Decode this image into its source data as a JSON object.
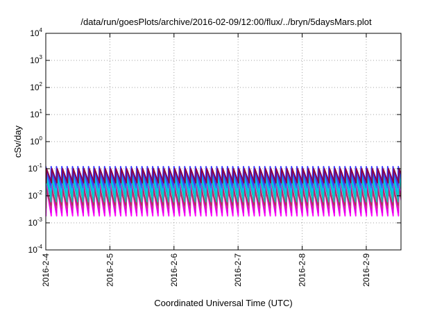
{
  "chart_data": {
    "type": "line",
    "title": "/data/run/goesPlots/archive/2016-02-09/12:00/flux/../bryn/5daysMars.plot",
    "xlabel": "Coordinated Universal Time (UTC)",
    "ylabel": "cSv/day",
    "y_scale": "log",
    "ylim": [
      0.0001,
      10000
    ],
    "xlim": [
      "2016-02-04T00:00",
      "2016-02-09T13:00"
    ],
    "x_ticks": [
      "2016-2-4",
      "2016-2-5",
      "2016-2-6",
      "2016-2-7",
      "2016-2-8",
      "2016-2-9"
    ],
    "y_ticks": [
      {
        "value": 0.0001,
        "base": "10",
        "exp": "-4"
      },
      {
        "value": 0.001,
        "base": "10",
        "exp": "-3"
      },
      {
        "value": 0.01,
        "base": "10",
        "exp": "-2"
      },
      {
        "value": 0.1,
        "base": "10",
        "exp": "-1"
      },
      {
        "value": 1,
        "base": "10",
        "exp": "0"
      },
      {
        "value": 10,
        "base": "10",
        "exp": "1"
      },
      {
        "value": 100,
        "base": "10",
        "exp": "2"
      },
      {
        "value": 1000,
        "base": "10",
        "exp": "3"
      },
      {
        "value": 10000,
        "base": "10",
        "exp": "4"
      }
    ],
    "grid": true,
    "legend": "none",
    "cycle_hours": 2,
    "series": [
      {
        "color": "#ff00ff",
        "peak": 0.022,
        "trough": 0.0018,
        "phase_hours": 0.2
      },
      {
        "color": "#e000e0",
        "peak": 0.028,
        "trough": 0.0024,
        "phase_hours": 0.15
      },
      {
        "color": "#cc3399",
        "peak": 0.014,
        "trough": 0.0035,
        "phase_hours": 0.25
      },
      {
        "color": "#b03060",
        "peak": 0.02,
        "trough": 0.0045,
        "phase_hours": 0.05
      },
      {
        "color": "#20b2aa",
        "peak": 0.05,
        "trough": 0.006,
        "phase_hours": 0.1
      },
      {
        "color": "#00ced1",
        "peak": 0.06,
        "trough": 0.009,
        "phase_hours": 0.12
      },
      {
        "color": "#00bfff",
        "peak": 0.08,
        "trough": 0.015,
        "phase_hours": 0.0
      },
      {
        "color": "#4169e1",
        "peak": 0.1,
        "trough": 0.02,
        "phase_hours": 0.0
      },
      {
        "color": "#3a3aff",
        "peak": 0.12,
        "trough": 0.025,
        "phase_hours": 0.0
      },
      {
        "color": "#8b0045",
        "peak": 0.1,
        "trough": 0.03,
        "phase_hours": 0.3
      }
    ]
  }
}
